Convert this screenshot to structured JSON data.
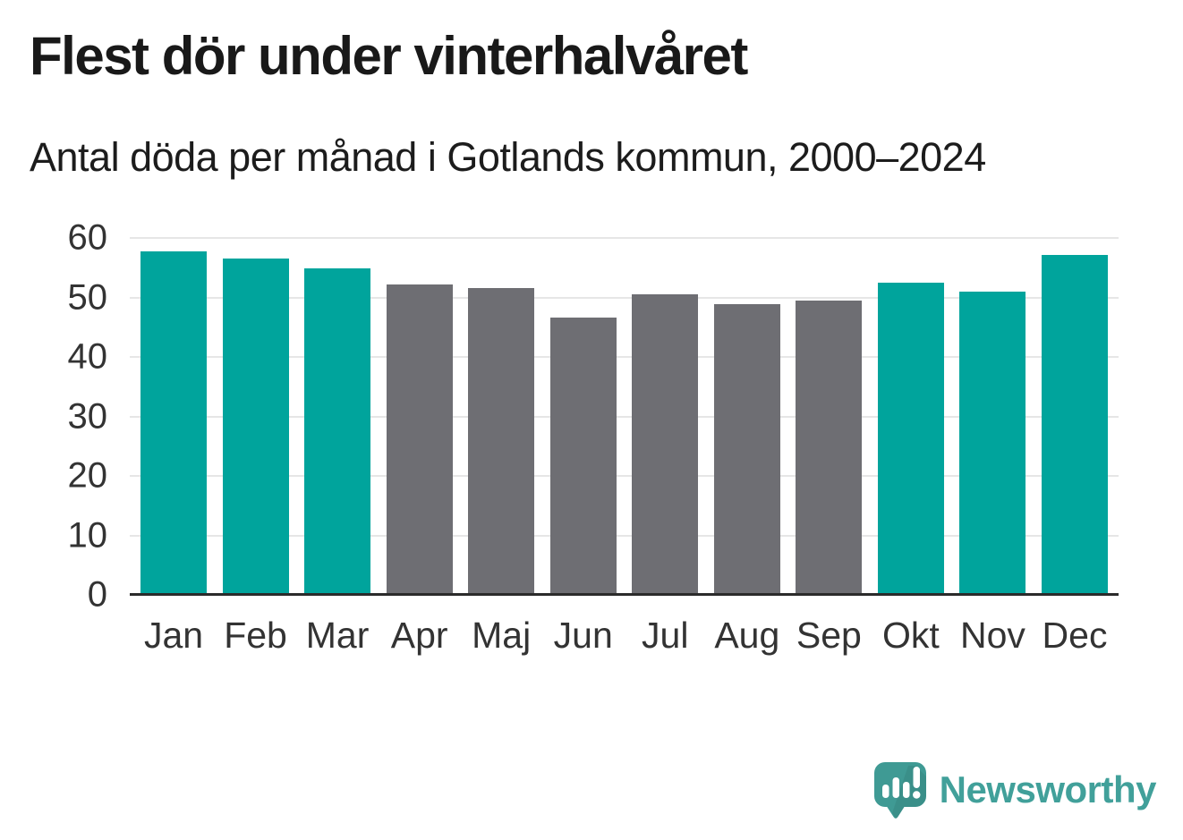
{
  "header": {
    "title": "Flest dör under vinterhalvåret",
    "subtitle": "Antal döda per månad i Gotlands kommun, 2000–2024"
  },
  "chart_data": {
    "type": "bar",
    "title": "Flest dör under vinterhalvåret",
    "subtitle": "Antal döda per månad i Gotlands kommun, 2000–2024",
    "categories": [
      "Jan",
      "Feb",
      "Mar",
      "Apr",
      "Maj",
      "Jun",
      "Jul",
      "Aug",
      "Sep",
      "Okt",
      "Nov",
      "Dec"
    ],
    "values": [
      57.7,
      56.6,
      54.9,
      52.2,
      51.6,
      46.6,
      50.5,
      48.8,
      49.5,
      52.5,
      51.0,
      57.1
    ],
    "bar_groups": [
      "winter",
      "winter",
      "winter",
      "summer",
      "summer",
      "summer",
      "summer",
      "summer",
      "summer",
      "winter",
      "winter",
      "winter"
    ],
    "group_colors": {
      "winter": "#00a49c",
      "summer": "#6e6e73"
    },
    "xlabel": "",
    "ylabel": "",
    "ylim": [
      0,
      60
    ],
    "yticks": [
      0,
      10,
      20,
      30,
      40,
      50,
      60
    ],
    "grid": true,
    "legend": "none"
  },
  "footer": {
    "brand": "Newsworthy",
    "logo_icon": "speech-bubble-with-bar-chart-and-exclamation"
  },
  "colors": {
    "winter_bar": "#00a49c",
    "summer_bar": "#6e6e73",
    "gridline": "#e6e6e6",
    "axis_line": "#2b2b2b",
    "tick_text": "#333333",
    "title_text": "#191919",
    "brand_teal": "#41a09a"
  }
}
